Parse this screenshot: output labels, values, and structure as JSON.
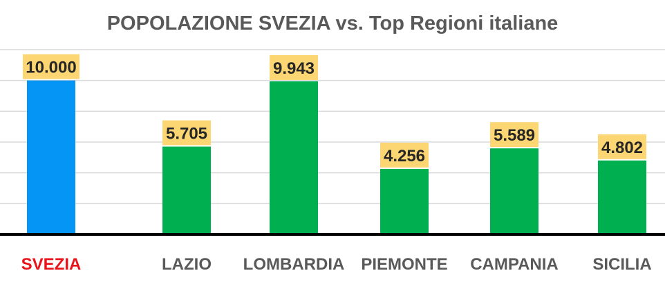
{
  "chart_data": {
    "type": "bar",
    "title": "POPOLAZIONE SVEZIA vs. Top Regioni italiane",
    "xlabel": "",
    "ylabel": "",
    "categories": [
      "SVEZIA",
      "LAZIO",
      "LOMBARDIA",
      "PIEMONTE",
      "CAMPANIA",
      "SICILIA"
    ],
    "values": [
      10000,
      5705,
      9943,
      4256,
      5589,
      4802
    ],
    "value_labels": [
      "10.000",
      "5.705",
      "9.943",
      "4.256",
      "5.589",
      "4.802"
    ],
    "ylim": [
      0,
      12000
    ],
    "grid": true,
    "legend": "none",
    "colors": {
      "highlight_bar": "#0595F5",
      "bar": "#00B050",
      "highlight_label": "#E8141B",
      "label": "#595959",
      "data_label_bg": "#FCD672",
      "axis": "#000000",
      "grid": "#D9D9D9",
      "title": "#595959"
    }
  }
}
